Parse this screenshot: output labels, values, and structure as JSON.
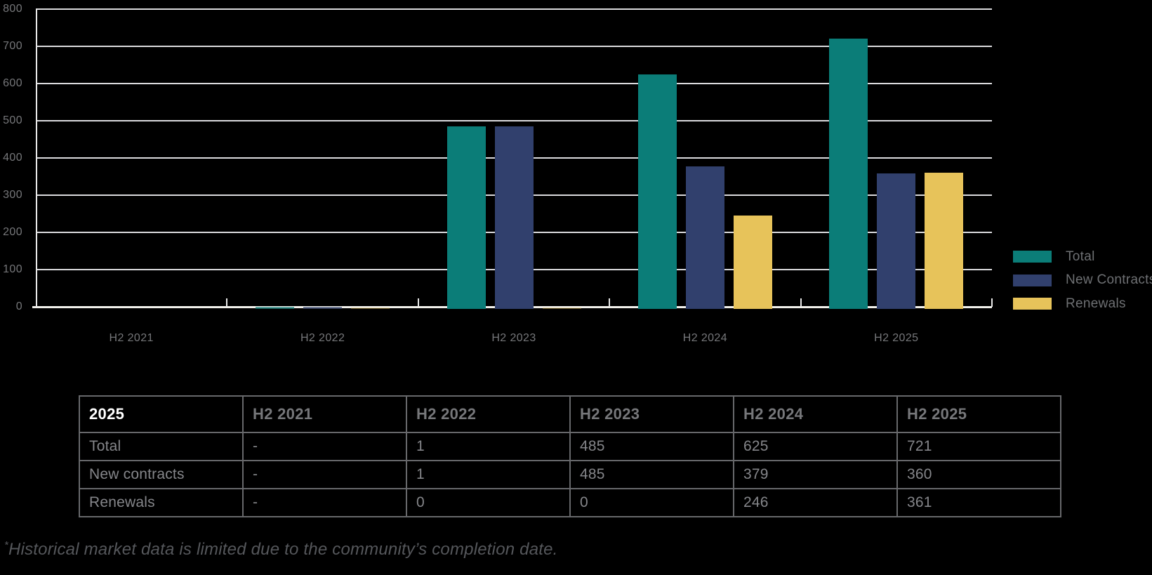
{
  "chart_data": {
    "type": "bar",
    "title": "",
    "xlabel": "",
    "ylabel": "",
    "categories": [
      "H2 2021",
      "H2 2022",
      "H2 2023",
      "H2 2024",
      "H2 2025"
    ],
    "series": [
      {
        "name": "Total",
        "color": "#0B7D78",
        "values": [
          null,
          1,
          485,
          625,
          721
        ]
      },
      {
        "name": "New Contracts",
        "color": "#31406D",
        "values": [
          null,
          1,
          485,
          379,
          360
        ]
      },
      {
        "name": "Renewals",
        "color": "#E7C35A",
        "values": [
          null,
          0,
          0,
          246,
          361
        ]
      }
    ],
    "ylim": [
      0,
      800
    ],
    "y_ticks": [
      0,
      100,
      200,
      300,
      400,
      500,
      600,
      700,
      800
    ],
    "grid": true,
    "legend_position": "right",
    "no_data_marker": "-"
  },
  "table": {
    "header": [
      "2025",
      "H2 2021",
      "H2 2022",
      "H2 2023",
      "H2 2024",
      "H2 2025"
    ],
    "rows": [
      {
        "label": "Total",
        "values": [
          "-",
          "1",
          "485",
          "625",
          "721"
        ]
      },
      {
        "label": "New contracts",
        "values": [
          "-",
          "1",
          "485",
          "379",
          "360"
        ]
      },
      {
        "label": "Renewals",
        "values": [
          "-",
          "0",
          "0",
          "246",
          "361"
        ]
      }
    ]
  },
  "footnote": {
    "marker": "*",
    "text": "Historical market data is limited due to the community’s completion date."
  },
  "colors": {
    "background": "#000000",
    "gridline": "#DBDBDE",
    "axis_line": "#F1F0EB",
    "axis_text": "#76777A",
    "legend_text": "#6E7073",
    "table_border": "#67686B",
    "table_header_text": "#76777A",
    "table_header_highlight": "#FFFFFF",
    "table_cell_text": "#85868A",
    "footnote_text": "#55575B"
  }
}
